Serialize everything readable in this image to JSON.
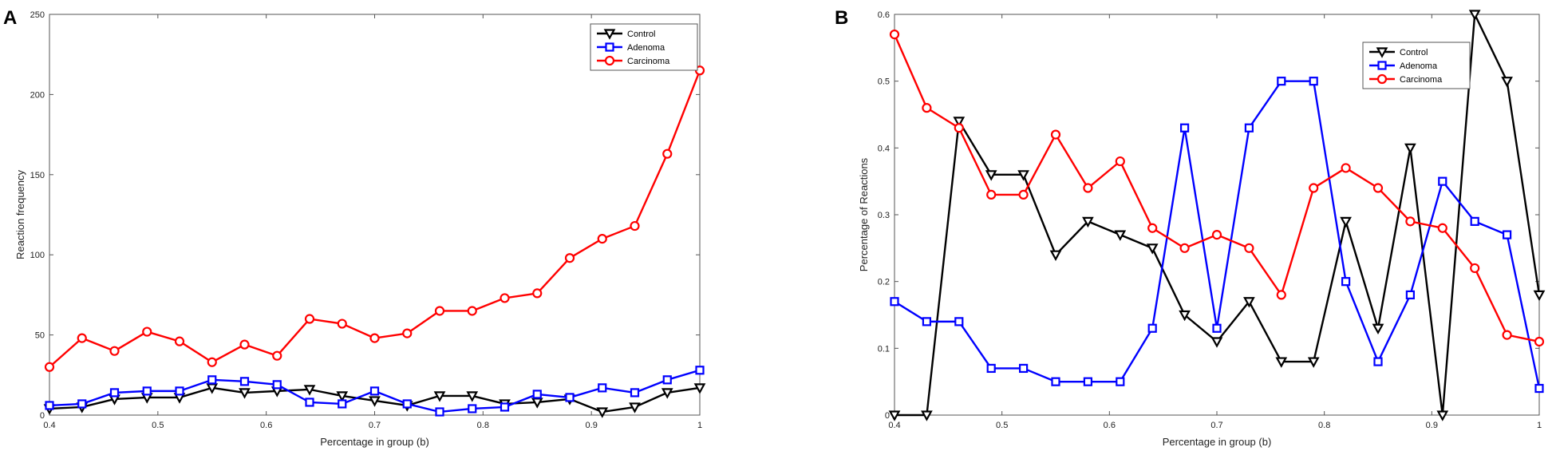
{
  "chart_data": [
    {
      "panel": "A",
      "type": "line",
      "xlabel": "Percentage in group (b)",
      "ylabel": "Reaction frequency",
      "xlim": [
        0.4,
        1.0
      ],
      "ylim": [
        0,
        250
      ],
      "xticks": [
        0.4,
        0.5,
        0.6,
        0.7,
        0.8,
        0.9,
        1
      ],
      "yticks": [
        0,
        50,
        100,
        150,
        200,
        250
      ],
      "legend": "top-right",
      "x": [
        0.4,
        0.43,
        0.46,
        0.49,
        0.52,
        0.55,
        0.58,
        0.61,
        0.64,
        0.67,
        0.7,
        0.73,
        0.76,
        0.79,
        0.82,
        0.85,
        0.88,
        0.91,
        0.94,
        0.97,
        1.0
      ],
      "series": [
        {
          "name": "Control",
          "color": "#000000",
          "marker": "triangle-down",
          "values": [
            4,
            5,
            10,
            11,
            11,
            17,
            14,
            15,
            16,
            12,
            9,
            6,
            12,
            12,
            7,
            8,
            10,
            2,
            5,
            14,
            17
          ]
        },
        {
          "name": "Adenoma",
          "color": "#0000ff",
          "marker": "square",
          "values": [
            6,
            7,
            14,
            15,
            15,
            22,
            21,
            19,
            8,
            7,
            15,
            7,
            2,
            4,
            5,
            13,
            11,
            17,
            14,
            22,
            28
          ]
        },
        {
          "name": "Carcinoma",
          "color": "#ff0000",
          "marker": "circle",
          "values": [
            30,
            48,
            40,
            52,
            46,
            33,
            44,
            37,
            60,
            57,
            48,
            51,
            65,
            65,
            73,
            76,
            98,
            110,
            118,
            163,
            215
          ]
        }
      ]
    },
    {
      "panel": "B",
      "type": "line",
      "xlabel": "Percentage in group (b)",
      "ylabel": "Percentage of Reactions",
      "xlim": [
        0.4,
        1.0
      ],
      "ylim": [
        0,
        0.6
      ],
      "xticks": [
        0.4,
        0.5,
        0.6,
        0.7,
        0.8,
        0.9,
        1
      ],
      "yticks": [
        0,
        0.1,
        0.2,
        0.3,
        0.4,
        0.5,
        0.6
      ],
      "legend": "top-right",
      "x": [
        0.4,
        0.43,
        0.46,
        0.49,
        0.52,
        0.55,
        0.58,
        0.61,
        0.64,
        0.67,
        0.7,
        0.73,
        0.76,
        0.79,
        0.82,
        0.85,
        0.88,
        0.91,
        0.94,
        0.97,
        1.0
      ],
      "series": [
        {
          "name": "Control",
          "color": "#000000",
          "marker": "triangle-down",
          "values": [
            0,
            0,
            0.44,
            0.36,
            0.36,
            0.24,
            0.29,
            0.27,
            0.25,
            0.15,
            0.11,
            0.17,
            0.08,
            0.08,
            0.29,
            0.13,
            0.4,
            0,
            0.6,
            0.5,
            0.18
          ]
        },
        {
          "name": "Adenoma",
          "color": "#0000ff",
          "marker": "square",
          "values": [
            0.17,
            0.14,
            0.14,
            0.07,
            0.07,
            0.05,
            0.05,
            0.05,
            0.13,
            0.43,
            0.13,
            0.43,
            0.5,
            0.5,
            0.2,
            0.08,
            0.18,
            0.35,
            0.29,
            0.27,
            0.04
          ]
        },
        {
          "name": "Carcinoma",
          "color": "#ff0000",
          "marker": "circle",
          "values": [
            0.57,
            0.46,
            0.43,
            0.33,
            0.33,
            0.42,
            0.34,
            0.38,
            0.28,
            0.25,
            0.27,
            0.25,
            0.18,
            0.34,
            0.37,
            0.34,
            0.29,
            0.28,
            0.22,
            0.12,
            0.11
          ]
        }
      ]
    }
  ]
}
